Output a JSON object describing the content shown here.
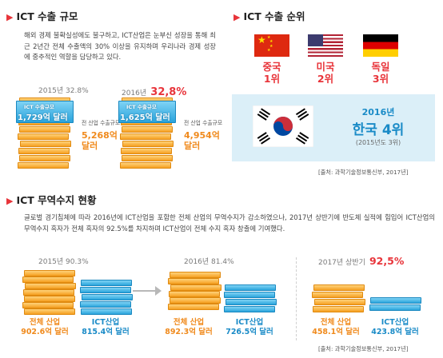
{
  "export_scale": {
    "title": "ICT 수출 규모",
    "paragraph": "해외 경제 불확실성에도 불구하고, ICT산업은 눈부신 성장을 통해 최근 2년간 전체 수출액의 30% 이상을 유지하며 우리나라 경제 성장에 중추적인 역할을 담당하고 있다.",
    "y2015_label": "2015년 32.8%",
    "y2016_year": "2016년",
    "y2016_pct": "32,8%",
    "stack_caption": "ICT 수출규모",
    "stack_2015_value": "1,729억 달러",
    "stack_2016_value": "1,625억 달러",
    "total_caption_2015": "전 산업 수출규모",
    "total_value_2015": "5,268억 달러",
    "total_caption_2016": "전 산업 수출규모",
    "total_value_2016": "4,954억 달러"
  },
  "export_rank": {
    "title": "ICT 수출 순위",
    "countries": [
      {
        "name": "중국",
        "rank": "1위",
        "icon": "china-flag-icon"
      },
      {
        "name": "미국",
        "rank": "2위",
        "icon": "usa-flag-icon"
      },
      {
        "name": "독일",
        "rank": "3위",
        "icon": "germany-flag-icon"
      }
    ],
    "korea_year": "2016년",
    "korea_rank": "한국 4위",
    "korea_note": "(2015년도 3위)",
    "source": "[출처: 과학기술정보통신부, 2017년]"
  },
  "trade_balance": {
    "title": "ICT 무역수지 현황",
    "paragraph": "글로벌 경기침체에 따라 2016년에 ICT산업을 포함한 전체 산업의 무역수지가 감소하였으나, 2017년 상반기에 반도체 실적에 힘입어 ICT산업의 무역수지 흑자가 전체 흑자의 92.5%를 차지하며 ICT산업이 전체 수지 흑자 창출에 기여했다.",
    "periods": [
      {
        "label": "2015년 90.3%",
        "total_name": "전체 산업",
        "total_value": "902.6억 달러",
        "ict_name": "ICT산업",
        "ict_value": "815.4억 달러"
      },
      {
        "label": "2016년 81.4%",
        "total_name": "전체 산업",
        "total_value": "892.3억 달러",
        "ict_name": "ICT산업",
        "ict_value": "726.5억 달러"
      },
      {
        "label_year": "2017년 상반기",
        "label_pct": "92,5%",
        "total_name": "전체 산업",
        "total_value": "458.1억 달러",
        "ict_name": "ICT산업",
        "ict_value": "423.8억 달러"
      }
    ],
    "source": "[출처: 과학기술정보통신부, 2017년]"
  },
  "colors": {
    "accent_red": "#e8343a",
    "orange": "#f08a1c",
    "blue": "#1a8bc7",
    "korea_bg": "#dbeff8"
  }
}
